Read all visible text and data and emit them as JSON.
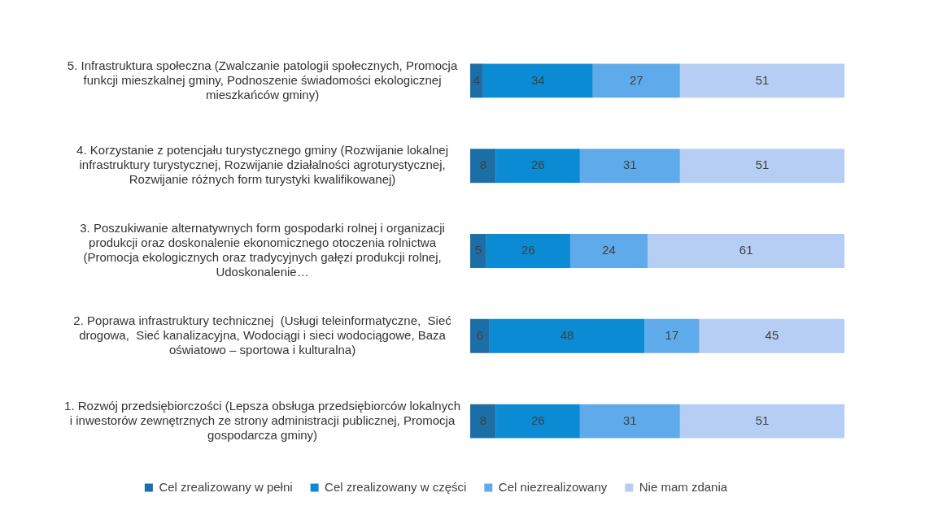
{
  "chart_data": {
    "type": "bar",
    "orientation": "horizontal",
    "stacked": true,
    "data_labels": true,
    "legend": "bottom",
    "tick_labels": "y",
    "categories": [
      "5. Infrastruktura społeczna (Zwalczanie patologii społecznych, Promocja funkcji mieszkalnej gminy, Podnoszenie świadomości ekologicznej mieszkańców gminy)",
      "4. Korzystanie z potencjału turystycznego gminy (Rozwijanie lokalnej infrastruktury turystycznej, Rozwijanie działalności agroturystycznej, Rozwijanie różnych form turystyki kwalifikowanej)",
      "3. Poszukiwanie alternatywnych form gospodarki rolnej i organizacji produkcji oraz doskonalenie ekonomicznego otoczenia rolnictwa (Promocja ekologicznych oraz tradycyjnych gałęzi produkcji rolnej, Udoskonalenie…",
      "2. Poprawa infrastruktury technicznej  (Usługi teleinformatyczne,  Sieć drogowa,  Sieć kanalizacyjna, Wodociągi i sieci wodociągowe, Baza oświatowo – sportowa i kulturalna)",
      "1. Rozwój przedsiębiorczości (Lepsza obsługa przedsiębiorców lokalnych i inwestorów zewnętrznych ze strony administracji publicznej, Promocja gospodarcza gminy)"
    ],
    "series": [
      {
        "name": "Cel zrealizowany w pełni",
        "color": "#1c6fa6",
        "values": [
          4,
          8,
          5,
          6,
          8
        ]
      },
      {
        "name": "Cel zrealizowany w części",
        "color": "#0b8bd3",
        "values": [
          34,
          26,
          26,
          48,
          26
        ]
      },
      {
        "name": "Cel niezrealizowany",
        "color": "#5eaaea",
        "values": [
          27,
          31,
          24,
          17,
          31
        ]
      },
      {
        "name": "Nie mam zdania",
        "color": "#b6cef3",
        "values": [
          51,
          51,
          61,
          45,
          51
        ]
      }
    ]
  }
}
